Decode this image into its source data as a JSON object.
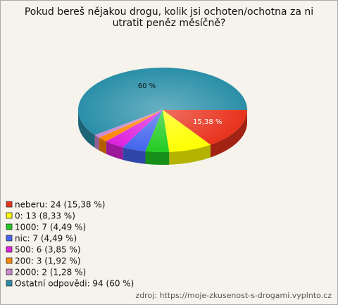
{
  "chart_data": {
    "type": "pie",
    "title": "Pokud bereš nějakou drogu, kolik jsi ochoten/ochotna za ni utratit peněz měsíčně?",
    "categories": [
      "neberu: 24 (15,38 %)",
      "0: 13 (8,33 %)",
      "1000: 7 (4,49 %)",
      "nic: 7 (4,49 %)",
      "500: 6 (3,85 %)",
      "200: 3 (1,92 %)",
      "2000: 2 (1,28 %)",
      "Ostatní odpovědi: 94 (60 %)"
    ],
    "values": [
      15.38,
      8.33,
      4.49,
      4.49,
      3.85,
      1.92,
      1.28,
      60
    ],
    "value_labels": [
      "15,38 %",
      null,
      null,
      null,
      null,
      null,
      null,
      "60 %"
    ],
    "colors": [
      "#e8321c",
      "#ffff00",
      "#22cc22",
      "#4466ee",
      "#dd22dd",
      "#ff8800",
      "#cc88cc",
      "#2a8fa8"
    ],
    "source": "zdroj: https://moje-zkusenost-s-drogami.vyplnto.cz"
  }
}
